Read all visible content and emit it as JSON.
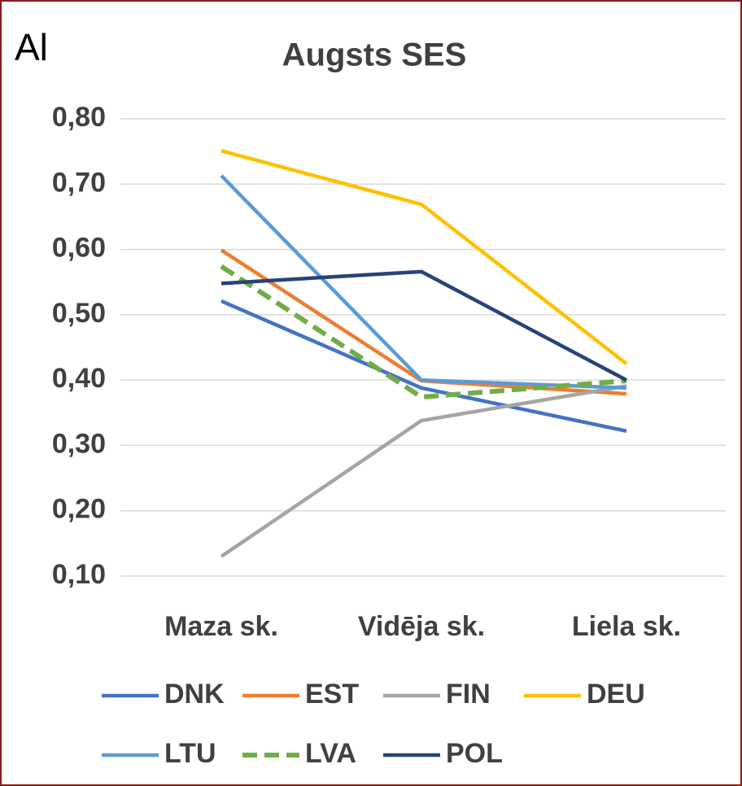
{
  "chart_data": {
    "type": "line",
    "annotation": "Al",
    "title": "Augsts SES",
    "categories": [
      "Maza sk.",
      "Vidēja sk.",
      "Liela sk."
    ],
    "series": [
      {
        "name": "DNK",
        "color": "#4472c4",
        "values": [
          0.521,
          0.388,
          0.322
        ]
      },
      {
        "name": "EST",
        "color": "#ed7d31",
        "values": [
          0.599,
          0.399,
          0.379
        ]
      },
      {
        "name": "FIN",
        "color": "#a5a5a5",
        "values": [
          0.13,
          0.338,
          0.391
        ]
      },
      {
        "name": "DEU",
        "color": "#ffc000",
        "values": [
          0.751,
          0.669,
          0.425
        ]
      },
      {
        "name": "LTU",
        "color": "#5b9bd5",
        "values": [
          0.713,
          0.4,
          0.388
        ]
      },
      {
        "name": "LVA",
        "color": "#70ad47",
        "dashed": true,
        "values": [
          0.574,
          0.374,
          0.399
        ]
      },
      {
        "name": "POL",
        "color": "#264478",
        "values": [
          0.548,
          0.566,
          0.4
        ]
      }
    ],
    "ylim": [
      0.1,
      0.8
    ],
    "yticks": [
      {
        "value": 0.1,
        "label": "0,10"
      },
      {
        "value": 0.2,
        "label": "0,20"
      },
      {
        "value": 0.3,
        "label": "0,30"
      },
      {
        "value": 0.4,
        "label": "0,40"
      },
      {
        "value": 0.5,
        "label": "0,50"
      },
      {
        "value": 0.6,
        "label": "0,60"
      },
      {
        "value": 0.7,
        "label": "0,70"
      },
      {
        "value": 0.8,
        "label": "0,80"
      }
    ],
    "grid": true,
    "legend": "bottom"
  }
}
